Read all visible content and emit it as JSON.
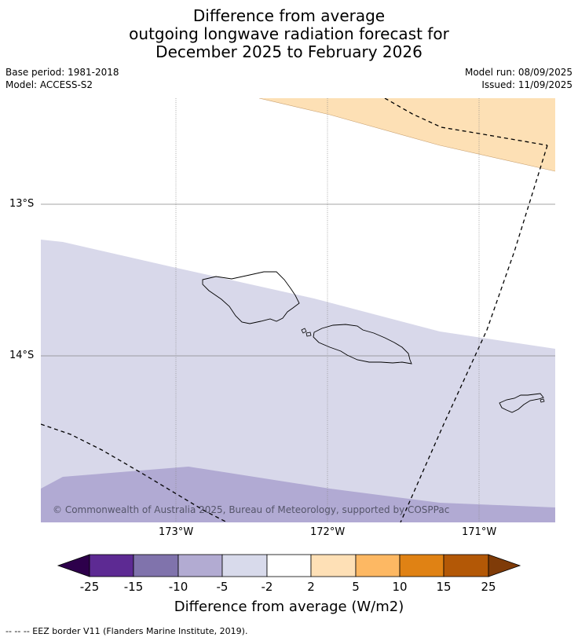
{
  "title": {
    "line1": "Difference from average",
    "line2": "outgoing longwave radiation forecast for",
    "line3": "December 2025 to February 2026"
  },
  "meta": {
    "base_period": "Base period: 1981-2018",
    "model": "Model: ACCESS-S2",
    "model_run": "Model run: 08/09/2025",
    "issued": "Issued: 11/09/2025"
  },
  "map": {
    "lat_labels": [
      "13°S",
      "14°S"
    ],
    "lon_labels": [
      "173°W",
      "172°W",
      "171°W"
    ],
    "copyright": "© Commonwealth of Australia 2025, Bureau of Meteorology, supported by COSPPac",
    "colors": {
      "pos_2_5": "#fde0b5",
      "neg_5_2": "#d8d8ea",
      "neg_10_5": "#b1aad3"
    }
  },
  "colorbar": {
    "labels": [
      "-25",
      "-15",
      "-10",
      "-5",
      "-2",
      "2",
      "5",
      "10",
      "15",
      "25"
    ],
    "colors": [
      "#2d004b",
      "#5d2a93",
      "#8073ac",
      "#b2abd2",
      "#d8daeb",
      "#ffffff",
      "#fee0b6",
      "#fdb863",
      "#e08214",
      "#b35806",
      "#7f3b08"
    ],
    "title": "Difference from average (W/m2)"
  },
  "footer": "--  --  -- EEZ border V11 (Flanders Marine Institute, 2019)."
}
